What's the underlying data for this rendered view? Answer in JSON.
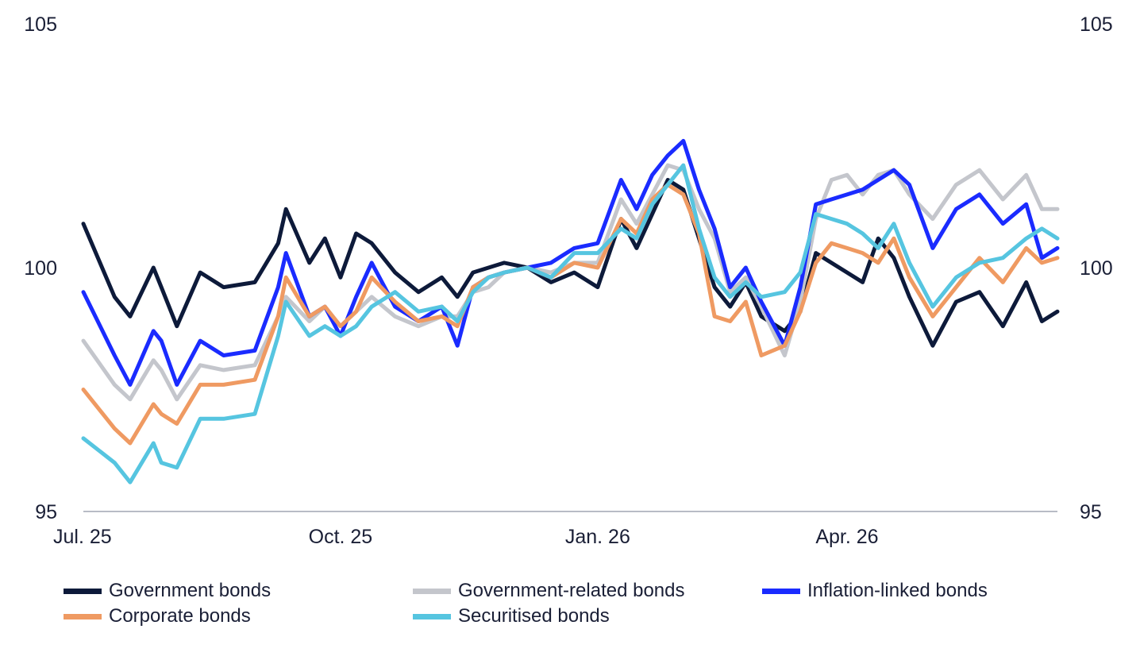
{
  "chart_data": {
    "type": "line",
    "title": "",
    "xlabel": "",
    "ylabel": "",
    "ylim": [
      95,
      105
    ],
    "yticks": [
      "95",
      "100",
      "105"
    ],
    "xticks": [
      {
        "label": "Jul. 25",
        "x": 0
      },
      {
        "label": "Oct. 25",
        "x": 66
      },
      {
        "label": "Jan. 26",
        "x": 132
      },
      {
        "label": "Apr. 26",
        "x": 196
      }
    ],
    "x_max": 250,
    "grid": false,
    "legend_position": "bottom",
    "x": [
      0,
      8,
      12,
      18,
      20,
      24,
      30,
      36,
      44,
      50,
      52,
      58,
      62,
      66,
      70,
      74,
      80,
      86,
      92,
      96,
      100,
      104,
      108,
      114,
      120,
      126,
      132,
      138,
      142,
      146,
      150,
      154,
      158,
      162,
      166,
      170,
      174,
      180,
      184,
      188,
      192,
      196,
      200,
      204,
      208,
      212,
      218,
      224,
      230,
      236,
      242,
      246,
      250
    ],
    "series": [
      {
        "name": "Government bonds",
        "color": "#0d1a3a",
        "values": [
          100.9,
          99.4,
          99.0,
          100.0,
          99.6,
          98.8,
          99.9,
          99.6,
          99.7,
          100.5,
          101.2,
          100.1,
          100.6,
          99.8,
          100.7,
          100.5,
          99.9,
          99.5,
          99.8,
          99.4,
          99.9,
          100.0,
          100.1,
          100.0,
          99.7,
          99.9,
          99.6,
          101.0,
          100.4,
          101.1,
          101.8,
          101.6,
          100.6,
          99.6,
          99.2,
          99.7,
          99.0,
          98.7,
          99.1,
          100.3,
          100.1,
          99.9,
          99.7,
          100.6,
          100.2,
          99.4,
          98.4,
          99.3,
          99.5,
          98.8,
          99.7,
          98.9,
          99.1
        ]
      },
      {
        "name": "Government-related bonds",
        "color": "#c4c6cc",
        "values": [
          98.5,
          97.6,
          97.3,
          98.1,
          97.9,
          97.3,
          98.0,
          97.9,
          98.0,
          99.0,
          99.4,
          98.9,
          99.2,
          98.8,
          99.1,
          99.4,
          99.0,
          98.8,
          99.0,
          99.0,
          99.5,
          99.6,
          99.9,
          100.0,
          99.9,
          100.1,
          100.1,
          101.4,
          100.9,
          101.5,
          102.1,
          102.0,
          101.2,
          100.6,
          99.5,
          99.8,
          99.2,
          98.2,
          99.3,
          101.0,
          101.8,
          101.9,
          101.5,
          101.9,
          102.0,
          101.5,
          101.0,
          101.7,
          102.0,
          101.4,
          101.9,
          101.2,
          101.2
        ]
      },
      {
        "name": "Inflation-linked bonds",
        "color": "#1a2bff",
        "values": [
          99.5,
          98.2,
          97.6,
          98.7,
          98.5,
          97.6,
          98.5,
          98.2,
          98.3,
          99.6,
          100.3,
          99.0,
          99.2,
          98.6,
          99.4,
          100.1,
          99.2,
          98.9,
          99.2,
          98.4,
          99.6,
          99.8,
          99.9,
          100.0,
          100.1,
          100.4,
          100.5,
          101.8,
          101.2,
          101.9,
          102.3,
          102.6,
          101.6,
          100.8,
          99.6,
          100.0,
          99.3,
          98.4,
          99.6,
          101.3,
          101.4,
          101.5,
          101.6,
          101.8,
          102.0,
          101.7,
          100.4,
          101.2,
          101.5,
          100.9,
          101.3,
          100.2,
          100.4
        ]
      },
      {
        "name": "Corporate bonds",
        "color": "#ef9a62",
        "values": [
          97.5,
          96.7,
          96.4,
          97.2,
          97.0,
          96.8,
          97.6,
          97.6,
          97.7,
          99.0,
          99.8,
          99.0,
          99.2,
          98.8,
          99.1,
          99.8,
          99.3,
          98.9,
          99.0,
          98.8,
          99.6,
          99.8,
          99.9,
          100.0,
          99.8,
          100.1,
          100.0,
          101.0,
          100.7,
          101.4,
          101.7,
          101.5,
          100.7,
          99.0,
          98.9,
          99.3,
          98.2,
          98.4,
          99.1,
          100.1,
          100.5,
          100.4,
          100.3,
          100.1,
          100.6,
          99.8,
          99.0,
          99.6,
          100.2,
          99.7,
          100.4,
          100.1,
          100.2
        ]
      },
      {
        "name": "Securitised bonds",
        "color": "#56c5e0",
        "values": [
          96.5,
          96.0,
          95.6,
          96.4,
          96.0,
          95.9,
          96.9,
          96.9,
          97.0,
          98.6,
          99.3,
          98.6,
          98.8,
          98.6,
          98.8,
          99.2,
          99.5,
          99.1,
          99.2,
          98.9,
          99.5,
          99.8,
          99.9,
          100.0,
          99.8,
          100.3,
          100.3,
          100.8,
          100.6,
          101.3,
          101.7,
          102.1,
          100.8,
          99.8,
          99.4,
          99.7,
          99.4,
          99.5,
          99.9,
          101.1,
          101.0,
          100.9,
          100.7,
          100.4,
          100.9,
          100.1,
          99.2,
          99.8,
          100.1,
          100.2,
          100.6,
          100.8,
          100.6
        ]
      }
    ]
  },
  "legend": {
    "items": [
      {
        "label": "Government bonds",
        "color": "#0d1a3a"
      },
      {
        "label": "Government-related bonds",
        "color": "#c4c6cc"
      },
      {
        "label": "Inflation-linked bonds",
        "color": "#1a2bff"
      },
      {
        "label": "Corporate bonds",
        "color": "#ef9a62"
      },
      {
        "label": "Securitised bonds",
        "color": "#56c5e0"
      }
    ]
  }
}
